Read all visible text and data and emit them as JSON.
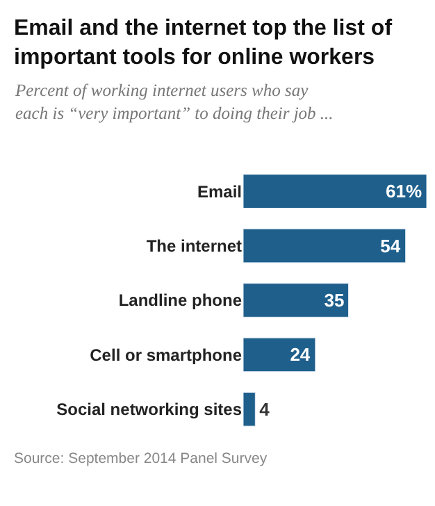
{
  "chart_data": {
    "type": "bar",
    "orientation": "horizontal",
    "title": "Email and the internet top the list of important tools for online workers",
    "subtitle": "Percent of working internet users who say each is “very important” to doing their job ...",
    "categories": [
      "Email",
      "The internet",
      "Landline phone",
      "Cell or smartphone",
      "Social networking sites"
    ],
    "values": [
      61,
      54,
      35,
      24,
      4
    ],
    "value_labels": [
      "61%",
      "54",
      "35",
      "24",
      "4"
    ],
    "color": "#1f5f8b",
    "xlim": [
      0,
      61
    ],
    "tick_labels": false,
    "grid": false,
    "annotations": [
      "Source: September 2014 Panel Survey"
    ]
  }
}
